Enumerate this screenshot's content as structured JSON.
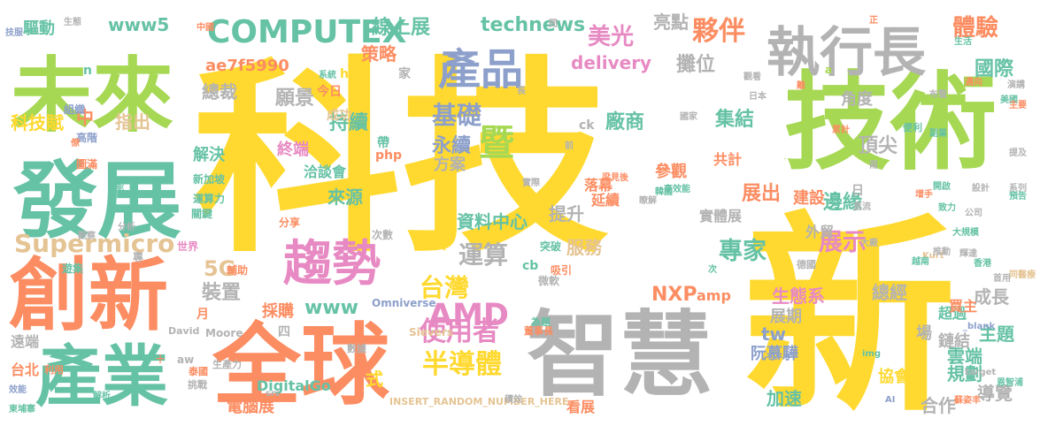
{
  "palette": {
    "yellow": "#FFD92F",
    "green": "#A6D854",
    "teal": "#66C2A5",
    "orange": "#FC8D62",
    "blue": "#8DA0CB",
    "pink": "#E78AC3",
    "tan": "#E5C494",
    "gray": "#B3B3B3"
  },
  "words": [
    {
      "text": "科技",
      "color": "yellow"
    },
    {
      "text": "新",
      "color": "yellow"
    },
    {
      "text": "技術",
      "color": "green"
    },
    {
      "text": "智慧",
      "color": "gray"
    },
    {
      "text": "全球",
      "color": "orange"
    },
    {
      "text": "創新",
      "color": "orange"
    },
    {
      "text": "發展",
      "color": "teal"
    },
    {
      "text": "未來",
      "color": "green"
    },
    {
      "text": "產業",
      "color": "teal"
    },
    {
      "text": "執行長",
      "color": "gray"
    },
    {
      "text": "產品",
      "color": "blue"
    },
    {
      "text": "趨勢",
      "color": "pink"
    },
    {
      "text": "暨",
      "color": "green"
    },
    {
      "text": "COMPUTEX",
      "color": "teal"
    },
    {
      "text": "Supermicro",
      "color": "tan"
    },
    {
      "text": "AMD",
      "color": "pink"
    },
    {
      "text": "半導體",
      "color": "yellow"
    },
    {
      "text": "使用者",
      "color": "pink"
    },
    {
      "text": "台灣",
      "color": "yellow"
    },
    {
      "text": "基礎",
      "color": "blue"
    },
    {
      "text": "運算",
      "color": "gray"
    },
    {
      "text": "專家",
      "color": "teal"
    },
    {
      "text": "展示",
      "color": "pink"
    },
    {
      "text": "技術",
      "color": "green"
    },
    {
      "text": "夥伴",
      "color": "orange"
    },
    {
      "text": "美光",
      "color": "pink"
    },
    {
      "text": "體驗",
      "color": "orange"
    },
    {
      "text": "國際",
      "color": "teal"
    },
    {
      "text": "線上展",
      "color": "teal"
    },
    {
      "text": "www5",
      "color": "teal"
    },
    {
      "text": "technews",
      "color": "teal"
    },
    {
      "text": "delivery",
      "color": "pink"
    },
    {
      "text": "策略",
      "color": "orange"
    },
    {
      "text": "亮點",
      "color": "gray"
    },
    {
      "text": "攤位",
      "color": "gray"
    },
    {
      "text": "廠商",
      "color": "teal"
    },
    {
      "text": "集結",
      "color": "teal"
    },
    {
      "text": "永續",
      "color": "blue"
    },
    {
      "text": "持續",
      "color": "teal"
    },
    {
      "text": "願景",
      "color": "gray"
    },
    {
      "text": "總裁",
      "color": "gray"
    },
    {
      "text": "指出",
      "color": "tan"
    },
    {
      "text": "中",
      "color": "orange"
    },
    {
      "text": "科技賦",
      "color": "yellow"
    },
    {
      "text": "驅動",
      "color": "teal"
    },
    {
      "text": "ae7f5990",
      "color": "orange"
    },
    {
      "text": "解決",
      "color": "teal"
    },
    {
      "text": "終端",
      "color": "pink"
    },
    {
      "text": "方案",
      "color": "gray"
    },
    {
      "text": "參觀",
      "color": "orange"
    },
    {
      "text": "展出",
      "color": "orange"
    },
    {
      "text": "建設",
      "color": "orange"
    },
    {
      "text": "邊緣",
      "color": "teal"
    },
    {
      "text": "頂尖",
      "color": "gray"
    },
    {
      "text": "資料中心",
      "color": "teal"
    },
    {
      "text": "提升",
      "color": "gray"
    },
    {
      "text": "服務",
      "color": "tan"
    },
    {
      "text": "來源",
      "color": "teal"
    },
    {
      "text": "5G",
      "color": "tan"
    },
    {
      "text": "裝置",
      "color": "gray"
    },
    {
      "text": "www",
      "color": "teal"
    },
    {
      "text": "NXP",
      "color": "orange"
    },
    {
      "text": "amp",
      "color": "orange"
    },
    {
      "text": "生態系",
      "color": "pink"
    },
    {
      "text": "總經",
      "color": "gray"
    },
    {
      "text": "成長",
      "color": "gray"
    },
    {
      "text": "tw",
      "color": "blue"
    },
    {
      "text": "式",
      "color": "yellow"
    },
    {
      "text": "阮慕驊",
      "color": "blue"
    },
    {
      "text": "雲端",
      "color": "teal"
    },
    {
      "text": "主題",
      "color": "teal"
    },
    {
      "text": "規劃",
      "color": "teal"
    },
    {
      "text": "合作",
      "color": "gray"
    },
    {
      "text": "加速",
      "color": "teal"
    },
    {
      "text": "導覽",
      "color": "gray"
    },
    {
      "text": "鏈結",
      "color": "gray"
    },
    {
      "text": "超過",
      "color": "teal"
    },
    {
      "text": "買主",
      "color": "orange"
    },
    {
      "text": "角度",
      "color": "gray"
    },
    {
      "text": "協會",
      "color": "yellow"
    },
    {
      "text": "展期",
      "color": "gray"
    },
    {
      "text": "場",
      "color": "gray"
    },
    {
      "text": "採購",
      "color": "orange"
    },
    {
      "text": "電腦展",
      "color": "orange"
    },
    {
      "text": "DigitalGo",
      "color": "teal"
    },
    {
      "text": "看展",
      "color": "orange"
    },
    {
      "text": "遠端",
      "color": "gray"
    },
    {
      "text": "台北",
      "color": "orange"
    },
    {
      "text": "落幕",
      "color": "orange"
    },
    {
      "text": "延續",
      "color": "orange"
    },
    {
      "text": "共計",
      "color": "orange"
    },
    {
      "text": "實體展",
      "color": "gray"
    },
    {
      "text": "外貿",
      "color": "gray"
    },
    {
      "text": "洽談會",
      "color": "teal"
    },
    {
      "text": "成功",
      "color": "tan"
    },
    {
      "text": "php",
      "color": "orange"
    },
    {
      "text": "帶",
      "color": "teal"
    },
    {
      "text": "今日",
      "color": "orange"
    },
    {
      "text": "href",
      "color": "yellow"
    },
    {
      "text": "家",
      "color": "gray"
    },
    {
      "text": "ck",
      "color": "gray"
    },
    {
      "text": "天",
      "color": "yellow"
    },
    {
      "text": "cb",
      "color": "teal"
    },
    {
      "text": "四",
      "color": "gray"
    },
    {
      "text": "Omniverse",
      "color": "blue"
    },
    {
      "text": "Moore",
      "color": "gray"
    },
    {
      "text": "Sievers",
      "color": "tan"
    },
    {
      "text": "INSERT_RANDOM_NUMBER_HERE",
      "color": "tan"
    },
    {
      "text": "a",
      "color": "green"
    },
    {
      "text": "n",
      "color": "teal"
    },
    {
      "text": "日",
      "color": "gray"
    },
    {
      "text": "月",
      "color": "orange"
    },
    {
      "text": "圖滿",
      "color": "orange"
    },
    {
      "text": "組織",
      "color": "blue"
    },
    {
      "text": "高階",
      "color": "blue"
    },
    {
      "text": "新加坡",
      "color": "teal"
    },
    {
      "text": "運算力",
      "color": "teal"
    },
    {
      "text": "關鍵",
      "color": "teal"
    },
    {
      "text": "分析",
      "color": "gray"
    },
    {
      "text": "世界",
      "color": "pink"
    },
    {
      "text": "專",
      "color": "gray"
    },
    {
      "text": "遊集",
      "color": "teal"
    },
    {
      "text": "輔助",
      "color": "orange"
    },
    {
      "text": "分享",
      "color": "orange"
    },
    {
      "text": "次數",
      "color": "gray"
    },
    {
      "text": "突破",
      "color": "teal"
    },
    {
      "text": "微軟",
      "color": "gray"
    },
    {
      "text": "吸引",
      "color": "orange"
    },
    {
      "text": "為題",
      "color": "teal"
    },
    {
      "text": "董事長",
      "color": "orange"
    },
    {
      "text": "數據",
      "color": "gray"
    },
    {
      "text": "生產力",
      "color": "gray"
    },
    {
      "text": "泰國",
      "color": "orange"
    },
    {
      "text": "挑戰",
      "color": "gray"
    },
    {
      "text": "aw",
      "color": "gray"
    },
    {
      "text": "src",
      "color": "gray"
    },
    {
      "text": "David",
      "color": "gray"
    },
    {
      "text": "利用",
      "color": "orange"
    },
    {
      "text": "解析",
      "color": "teal"
    },
    {
      "text": "東埔寨",
      "color": "teal"
    },
    {
      "text": "效能",
      "color": "blue"
    },
    {
      "text": "技服",
      "color": "blue"
    },
    {
      "text": "生態",
      "color": "gray"
    },
    {
      "text": "問",
      "color": "gray"
    },
    {
      "text": "中國",
      "color": "orange"
    },
    {
      "text": "正",
      "color": "orange"
    },
    {
      "text": "生活",
      "color": "teal"
    },
    {
      "text": "邁向",
      "color": "orange"
    },
    {
      "text": "演講",
      "color": "gray"
    },
    {
      "text": "美國",
      "color": "teal"
    },
    {
      "text": "主要",
      "color": "orange"
    },
    {
      "text": "副業",
      "color": "teal"
    },
    {
      "text": "便利",
      "color": "teal"
    },
    {
      "text": "提及",
      "color": "gray"
    },
    {
      "text": "系列",
      "color": "gray"
    },
    {
      "text": "預告",
      "color": "teal"
    },
    {
      "text": "公司",
      "color": "gray"
    },
    {
      "text": "設計",
      "color": "gray"
    },
    {
      "text": "開啟",
      "color": "teal"
    },
    {
      "text": "致力",
      "color": "teal"
    },
    {
      "text": "大規模",
      "color": "teal"
    },
    {
      "text": "大廠",
      "color": "gray"
    },
    {
      "text": "Kurt",
      "color": "tan"
    },
    {
      "text": "推動",
      "color": "gray"
    },
    {
      "text": "越南",
      "color": "teal"
    },
    {
      "text": "香港",
      "color": "teal"
    },
    {
      "text": "同醫療",
      "color": "tan"
    },
    {
      "text": "首用",
      "color": "gray"
    },
    {
      "text": "_blank",
      "color": "blue"
    },
    {
      "text": "AI",
      "color": "blue"
    },
    {
      "text": "蘇姿丰",
      "color": "orange"
    },
    {
      "text": "恩智浦",
      "color": "teal"
    },
    {
      "text": "img",
      "color": "teal"
    },
    {
      "text": "target",
      "color": "gray"
    },
    {
      "text": "德國",
      "color": "gray"
    },
    {
      "text": "日本",
      "color": "gray"
    },
    {
      "text": "國家",
      "color": "gray"
    },
    {
      "text": "增手",
      "color": "orange"
    },
    {
      "text": "高效能",
      "color": "teal"
    },
    {
      "text": "長",
      "color": "gray"
    },
    {
      "text": "前",
      "color": "gray"
    },
    {
      "text": "系統",
      "color": "teal"
    },
    {
      "text": "觀看",
      "color": "gray"
    },
    {
      "text": "離",
      "color": "orange"
    },
    {
      "text": "布聲",
      "color": "gray"
    },
    {
      "text": "直流",
      "color": "gray"
    },
    {
      "text": "梁見後",
      "color": "orange"
    },
    {
      "text": "實際",
      "color": "gray"
    },
    {
      "text": "瞭解",
      "color": "gray"
    },
    {
      "text": "韓國",
      "color": "teal"
    },
    {
      "text": "僚",
      "color": "orange"
    },
    {
      "text": "兩",
      "color": "gray"
    },
    {
      "text": "輝達",
      "color": "gray"
    },
    {
      "text": "次",
      "color": "teal"
    },
    {
      "text": "累計",
      "color": "orange"
    },
    {
      "text": "積效",
      "color": "gray"
    },
    {
      "text": "十",
      "color": "orange"
    },
    {
      "text": "觀察",
      "color": "gray"
    },
    {
      "text": "能",
      "color": "teal"
    }
  ]
}
